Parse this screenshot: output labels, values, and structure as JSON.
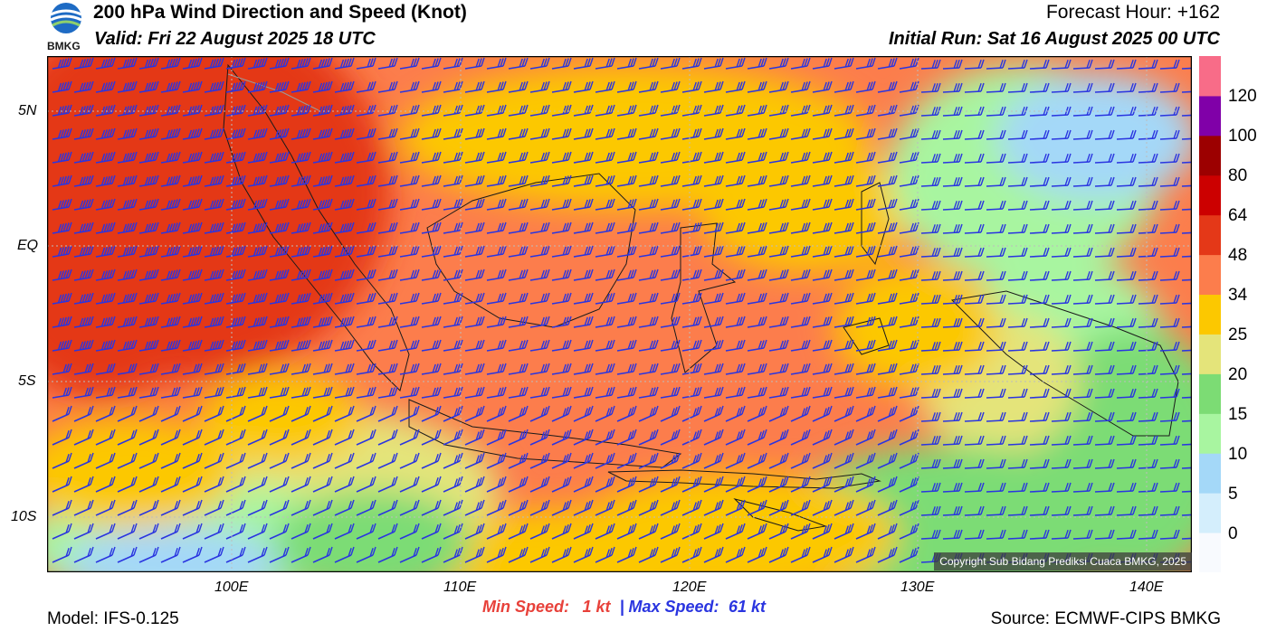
{
  "header": {
    "logo_text": "BMKG",
    "title": "200 hPa Wind Direction and Speed (Knot)",
    "valid": "Valid: Fri 22 August 2025 18 UTC",
    "forecast_hour": "Forecast Hour: +162",
    "initial_run": "Initial Run: Sat 16 August 2025 00 UTC"
  },
  "map": {
    "lat_ticks": [
      "5N",
      "EQ",
      "5S",
      "10S"
    ],
    "lon_ticks": [
      "100E",
      "110E",
      "120E",
      "130E",
      "140E"
    ],
    "copyright": "Copyright Sub Bidang Prediksi Cuaca BMKG, 2025"
  },
  "colorbar": {
    "labels": [
      "120",
      "100",
      "80",
      "64",
      "48",
      "34",
      "25",
      "20",
      "15",
      "10",
      "5",
      "0"
    ],
    "colors": [
      "#f8fafe",
      "#d4eefc",
      "#a4d8f8",
      "#a8f5a0",
      "#7cdc74",
      "#e4e47a",
      "#fcc800",
      "#fc7d4c",
      "#e43818",
      "#cc0000",
      "#9c0000",
      "#8000a8",
      "#f86c88"
    ]
  },
  "footer": {
    "model": "Model: IFS-0.125",
    "min_label": "Min Speed:",
    "min_value": "1 kt",
    "separator": "|",
    "max_label": "Max Speed:",
    "max_value": "61 kt",
    "source": "Source: ECMWF-CIPS BMKG"
  }
}
